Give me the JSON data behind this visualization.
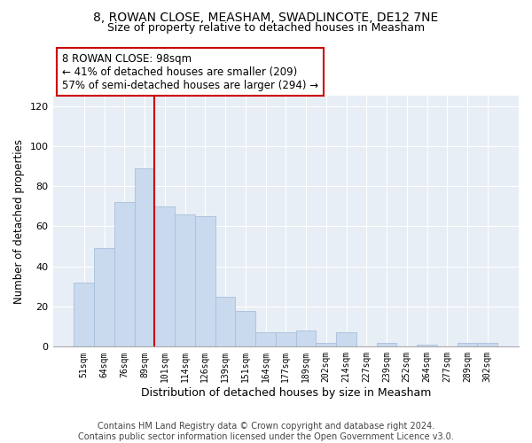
{
  "title": "8, ROWAN CLOSE, MEASHAM, SWADLINCOTE, DE12 7NE",
  "subtitle": "Size of property relative to detached houses in Measham",
  "xlabel": "Distribution of detached houses by size in Measham",
  "ylabel": "Number of detached properties",
  "bar_labels": [
    "51sqm",
    "64sqm",
    "76sqm",
    "89sqm",
    "101sqm",
    "114sqm",
    "126sqm",
    "139sqm",
    "151sqm",
    "164sqm",
    "177sqm",
    "189sqm",
    "202sqm",
    "214sqm",
    "227sqm",
    "239sqm",
    "252sqm",
    "264sqm",
    "277sqm",
    "289sqm",
    "302sqm"
  ],
  "bar_values": [
    32,
    49,
    72,
    89,
    70,
    66,
    65,
    25,
    18,
    7,
    7,
    8,
    2,
    7,
    0,
    2,
    0,
    1,
    0,
    2,
    2
  ],
  "bar_color": "#c9d9ee",
  "bar_edge_color": "#a8c0dc",
  "vline_color": "#cc0000",
  "annotation_text": "8 ROWAN CLOSE: 98sqm\n← 41% of detached houses are smaller (209)\n57% of semi-detached houses are larger (294) →",
  "annotation_box_edge": "#cc0000",
  "annotation_fontsize": 8.5,
  "ylim": [
    0,
    125
  ],
  "yticks": [
    0,
    20,
    40,
    60,
    80,
    100,
    120
  ],
  "title_fontsize": 10,
  "subtitle_fontsize": 9,
  "xlabel_fontsize": 9,
  "ylabel_fontsize": 8.5,
  "footer_text": "Contains HM Land Registry data © Crown copyright and database right 2024.\nContains public sector information licensed under the Open Government Licence v3.0.",
  "footer_fontsize": 7,
  "bg_color": "#e8eef5"
}
